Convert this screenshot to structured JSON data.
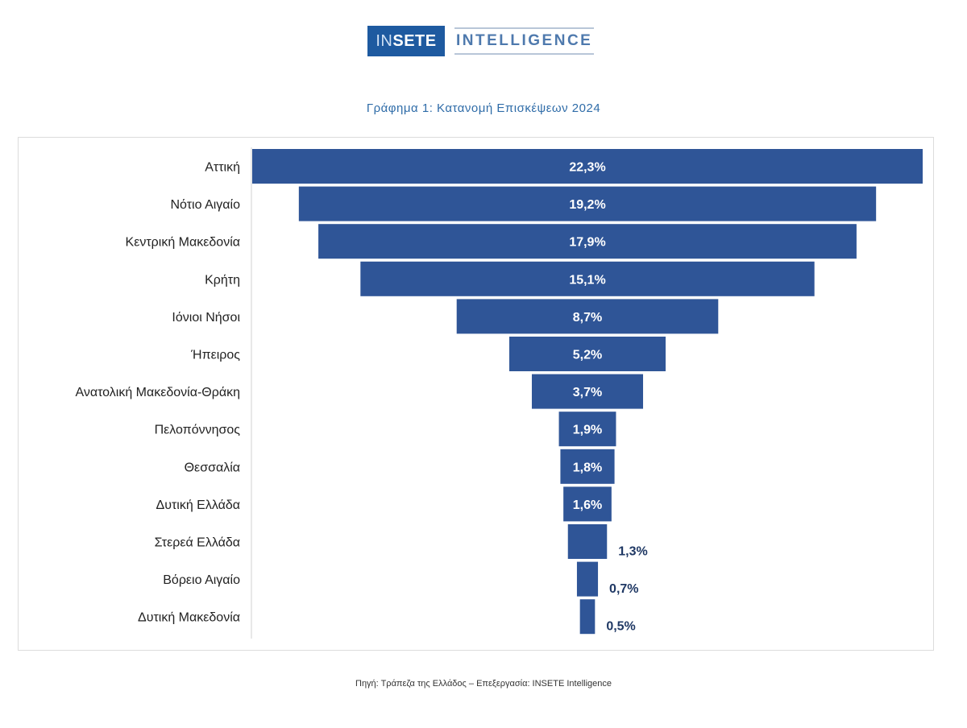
{
  "logo": {
    "text_in": "IN",
    "text_sete": "SETE",
    "text_intel": "INTELLIGENCE"
  },
  "title": "Γράφημα 1: Κατανομή Επισκέψεων 2024",
  "footer": "Πηγή: Τράπεζα της Ελλάδος – Επεξεργασία: INSETE Intelligence",
  "colors": {
    "bar": "#2f5597",
    "label": "#1f3864"
  },
  "chart_data": {
    "type": "bar",
    "subtype": "funnel",
    "title": "Γράφημα 1: Κατανομή Επισκέψεων 2024",
    "categories": [
      "Αττική",
      "Νότιο Αιγαίο",
      "Κεντρική Μακεδονία",
      "Κρήτη",
      "Ιόνιοι Νήσοι",
      "Ήπειρος",
      "Ανατολική Μακεδονία-Θράκη",
      "Πελοπόννησος",
      "Θεσσαλία",
      "Δυτική Ελλάδα",
      "Στερεά Ελλάδα",
      "Βόρειο Αιγαίο",
      "Δυτική Μακεδονία"
    ],
    "values": [
      22.3,
      19.2,
      17.9,
      15.1,
      8.7,
      5.2,
      3.7,
      1.9,
      1.8,
      1.6,
      1.3,
      0.7,
      0.5
    ],
    "labels": [
      "22,3%",
      "19,2%",
      "17,9%",
      "15,1%",
      "8,7%",
      "5,2%",
      "3,7%",
      "1,9%",
      "1,8%",
      "1,6%",
      "1,3%",
      "0,7%",
      "0,5%"
    ],
    "unit": "%",
    "xlabel": "",
    "ylabel": ""
  }
}
